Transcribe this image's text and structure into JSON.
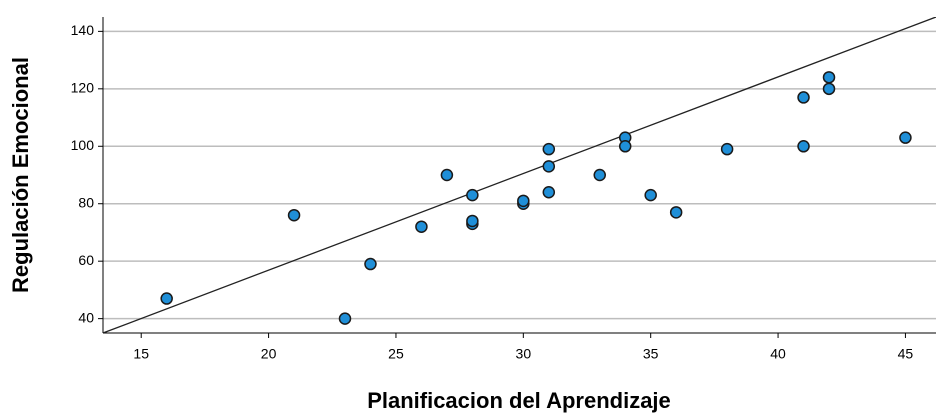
{
  "chart_data": {
    "type": "scatter",
    "x_label": "Planificacion del Aprendizaje",
    "y_label": "Regulación Emocional",
    "x": [
      16,
      21,
      23,
      24,
      26,
      27,
      28,
      28,
      28,
      30,
      30,
      31,
      31,
      31,
      33,
      34,
      34,
      35,
      36,
      38,
      41,
      41,
      42,
      42,
      45
    ],
    "y": [
      47,
      76,
      40,
      59,
      72,
      90,
      83,
      73,
      74,
      80,
      81,
      99,
      93,
      84,
      90,
      103,
      100,
      83,
      77,
      99,
      117,
      100,
      124,
      120,
      103
    ],
    "color": "#1f8fd8",
    "fit_line": {
      "x": [
        13.5,
        46.2
      ],
      "y": [
        35,
        145
      ]
    },
    "xlim": [
      13.5,
      46.2
    ],
    "xticks": [
      15,
      20,
      25,
      30,
      35,
      40,
      45
    ],
    "ylim": [
      35,
      145
    ],
    "yticks": [
      40,
      60,
      80,
      100,
      120,
      140
    ],
    "grid": true
  }
}
